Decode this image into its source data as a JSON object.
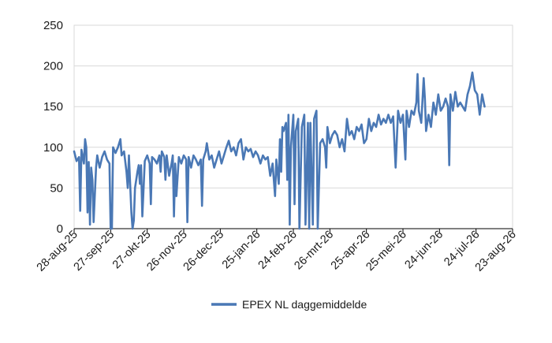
{
  "chart_data": {
    "type": "line",
    "title": "",
    "xlabel": "",
    "ylabel": "",
    "ylim": [
      0,
      250
    ],
    "yticks": [
      0,
      50,
      100,
      150,
      200,
      250
    ],
    "grid": "horizontal",
    "legend_position": "bottom-center",
    "series_color": "#4a78b5",
    "x_tick_labels": [
      "28-aug-25",
      "27-sep-25",
      "27-okt-25",
      "26-nov-25",
      "26-dec-25",
      "25-jan-26",
      "24-feb-26",
      "26-mrt-26",
      "25-apr-26",
      "25-mei-26",
      "24-jun-26",
      "24-jul-26",
      "23-aug-26"
    ],
    "x_start": "2025-08-28",
    "x_end": "2026-08-23",
    "series": [
      {
        "name": "EPEX NL daggemiddelde",
        "points": [
          [
            "2025-08-28",
            95
          ],
          [
            "2025-08-30",
            83
          ],
          [
            "2025-09-01",
            88
          ],
          [
            "2025-09-02",
            22
          ],
          [
            "2025-09-03",
            97
          ],
          [
            "2025-09-05",
            80
          ],
          [
            "2025-09-06",
            110
          ],
          [
            "2025-09-07",
            100
          ],
          [
            "2025-09-08",
            20
          ],
          [
            "2025-09-09",
            82
          ],
          [
            "2025-09-10",
            5
          ],
          [
            "2025-09-11",
            75
          ],
          [
            "2025-09-12",
            60
          ],
          [
            "2025-09-13",
            8
          ],
          [
            "2025-09-15",
            75
          ],
          [
            "2025-09-16",
            90
          ],
          [
            "2025-09-18",
            75
          ],
          [
            "2025-09-20",
            88
          ],
          [
            "2025-09-22",
            95
          ],
          [
            "2025-09-24",
            85
          ],
          [
            "2025-09-26",
            80
          ],
          [
            "2025-09-27",
            0
          ],
          [
            "2025-09-28",
            0
          ],
          [
            "2025-09-29",
            100
          ],
          [
            "2025-10-01",
            93
          ],
          [
            "2025-10-03",
            100
          ],
          [
            "2025-10-05",
            110
          ],
          [
            "2025-10-06",
            90
          ],
          [
            "2025-10-08",
            95
          ],
          [
            "2025-10-10",
            70
          ],
          [
            "2025-10-11",
            50
          ],
          [
            "2025-10-12",
            90
          ],
          [
            "2025-10-14",
            20
          ],
          [
            "2025-10-15",
            0
          ],
          [
            "2025-10-16",
            10
          ],
          [
            "2025-10-17",
            50
          ],
          [
            "2025-10-19",
            70
          ],
          [
            "2025-10-20",
            78
          ],
          [
            "2025-10-21",
            55
          ],
          [
            "2025-10-22",
            78
          ],
          [
            "2025-10-23",
            15
          ],
          [
            "2025-10-25",
            83
          ],
          [
            "2025-10-27",
            90
          ],
          [
            "2025-10-29",
            80
          ],
          [
            "2025-10-30",
            30
          ],
          [
            "2025-10-31",
            88
          ],
          [
            "2025-11-02",
            85
          ],
          [
            "2025-11-04",
            80
          ],
          [
            "2025-11-06",
            90
          ],
          [
            "2025-11-07",
            70
          ],
          [
            "2025-11-08",
            95
          ],
          [
            "2025-11-10",
            88
          ],
          [
            "2025-11-11",
            60
          ],
          [
            "2025-11-12",
            90
          ],
          [
            "2025-11-14",
            65
          ],
          [
            "2025-11-16",
            80
          ],
          [
            "2025-11-17",
            90
          ],
          [
            "2025-11-18",
            15
          ],
          [
            "2025-11-19",
            80
          ],
          [
            "2025-11-20",
            40
          ],
          [
            "2025-11-22",
            88
          ],
          [
            "2025-11-24",
            80
          ],
          [
            "2025-11-26",
            90
          ],
          [
            "2025-11-28",
            85
          ],
          [
            "2025-11-29",
            8
          ],
          [
            "2025-11-30",
            88
          ],
          [
            "2025-12-02",
            75
          ],
          [
            "2025-12-04",
            90
          ],
          [
            "2025-12-06",
            85
          ],
          [
            "2025-12-08",
            78
          ],
          [
            "2025-12-10",
            85
          ],
          [
            "2025-12-11",
            28
          ],
          [
            "2025-12-12",
            85
          ],
          [
            "2025-12-14",
            95
          ],
          [
            "2025-12-15",
            105
          ],
          [
            "2025-12-17",
            85
          ],
          [
            "2025-12-19",
            90
          ],
          [
            "2025-12-21",
            75
          ],
          [
            "2025-12-23",
            85
          ],
          [
            "2025-12-25",
            95
          ],
          [
            "2025-12-27",
            80
          ],
          [
            "2025-12-29",
            90
          ],
          [
            "2025-12-31",
            100
          ],
          [
            "2026-01-02",
            108
          ],
          [
            "2026-01-04",
            95
          ],
          [
            "2026-01-06",
            100
          ],
          [
            "2026-01-08",
            90
          ],
          [
            "2026-01-10",
            105
          ],
          [
            "2026-01-12",
            110
          ],
          [
            "2026-01-14",
            85
          ],
          [
            "2026-01-16",
            100
          ],
          [
            "2026-01-18",
            95
          ],
          [
            "2026-01-20",
            98
          ],
          [
            "2026-01-22",
            88
          ],
          [
            "2026-01-24",
            95
          ],
          [
            "2026-01-26",
            90
          ],
          [
            "2026-01-28",
            80
          ],
          [
            "2026-01-30",
            90
          ],
          [
            "2026-02-01",
            85
          ],
          [
            "2026-02-03",
            88
          ],
          [
            "2026-02-05",
            65
          ],
          [
            "2026-02-07",
            80
          ],
          [
            "2026-02-09",
            40
          ],
          [
            "2026-02-10",
            85
          ],
          [
            "2026-02-12",
            55
          ],
          [
            "2026-02-13",
            110
          ],
          [
            "2026-02-14",
            70
          ],
          [
            "2026-02-15",
            125
          ],
          [
            "2026-02-16",
            120
          ],
          [
            "2026-02-18",
            130
          ],
          [
            "2026-02-19",
            60
          ],
          [
            "2026-02-20",
            140
          ],
          [
            "2026-02-21",
            5
          ],
          [
            "2026-02-22",
            100
          ],
          [
            "2026-02-24",
            140
          ],
          [
            "2026-02-25",
            30
          ],
          [
            "2026-02-26",
            120
          ],
          [
            "2026-02-28",
            135
          ],
          [
            "2026-03-01",
            0
          ],
          [
            "2026-03-03",
            125
          ],
          [
            "2026-03-05",
            140
          ],
          [
            "2026-03-06",
            5
          ],
          [
            "2026-03-08",
            130
          ],
          [
            "2026-03-09",
            0
          ],
          [
            "2026-03-10",
            130
          ],
          [
            "2026-03-12",
            5
          ],
          [
            "2026-03-13",
            135
          ],
          [
            "2026-03-15",
            145
          ],
          [
            "2026-03-16",
            0
          ],
          [
            "2026-03-18",
            105
          ],
          [
            "2026-03-20",
            110
          ],
          [
            "2026-03-22",
            100
          ],
          [
            "2026-03-23",
            75
          ],
          [
            "2026-03-24",
            125
          ],
          [
            "2026-03-26",
            105
          ],
          [
            "2026-03-28",
            115
          ],
          [
            "2026-03-30",
            120
          ],
          [
            "2026-04-01",
            115
          ],
          [
            "2026-04-03",
            100
          ],
          [
            "2026-04-05",
            110
          ],
          [
            "2026-04-07",
            95
          ],
          [
            "2026-04-09",
            135
          ],
          [
            "2026-04-11",
            115
          ],
          [
            "2026-04-13",
            120
          ],
          [
            "2026-04-15",
            110
          ],
          [
            "2026-04-17",
            125
          ],
          [
            "2026-04-19",
            120
          ],
          [
            "2026-04-21",
            128
          ],
          [
            "2026-04-23",
            105
          ],
          [
            "2026-04-25",
            110
          ],
          [
            "2026-04-27",
            135
          ],
          [
            "2026-04-29",
            120
          ],
          [
            "2026-05-01",
            130
          ],
          [
            "2026-05-03",
            125
          ],
          [
            "2026-05-05",
            140
          ],
          [
            "2026-05-07",
            128
          ],
          [
            "2026-05-09",
            135
          ],
          [
            "2026-05-11",
            130
          ],
          [
            "2026-05-13",
            140
          ],
          [
            "2026-05-15",
            130
          ],
          [
            "2026-05-17",
            138
          ],
          [
            "2026-05-19",
            75
          ],
          [
            "2026-05-21",
            145
          ],
          [
            "2026-05-23",
            130
          ],
          [
            "2026-05-25",
            140
          ],
          [
            "2026-05-27",
            85
          ],
          [
            "2026-05-28",
            145
          ],
          [
            "2026-05-30",
            125
          ],
          [
            "2026-06-01",
            145
          ],
          [
            "2026-06-03",
            140
          ],
          [
            "2026-06-05",
            155
          ],
          [
            "2026-06-06",
            190
          ],
          [
            "2026-06-07",
            145
          ],
          [
            "2026-06-09",
            130
          ],
          [
            "2026-06-11",
            185
          ],
          [
            "2026-06-12",
            160
          ],
          [
            "2026-06-13",
            120
          ],
          [
            "2026-06-15",
            140
          ],
          [
            "2026-06-17",
            125
          ],
          [
            "2026-06-19",
            155
          ],
          [
            "2026-06-21",
            140
          ],
          [
            "2026-06-23",
            165
          ],
          [
            "2026-06-25",
            145
          ],
          [
            "2026-06-27",
            150
          ],
          [
            "2026-06-29",
            160
          ],
          [
            "2026-07-01",
            150
          ],
          [
            "2026-07-02",
            78
          ],
          [
            "2026-07-03",
            165
          ],
          [
            "2026-07-05",
            145
          ],
          [
            "2026-07-07",
            168
          ],
          [
            "2026-07-09",
            150
          ],
          [
            "2026-07-11",
            155
          ],
          [
            "2026-07-13",
            150
          ],
          [
            "2026-07-15",
            145
          ],
          [
            "2026-07-17",
            165
          ],
          [
            "2026-07-19",
            175
          ],
          [
            "2026-07-21",
            192
          ],
          [
            "2026-07-23",
            170
          ],
          [
            "2026-07-25",
            165
          ],
          [
            "2026-07-27",
            140
          ],
          [
            "2026-07-29",
            165
          ],
          [
            "2026-07-31",
            150
          ]
        ]
      }
    ]
  }
}
